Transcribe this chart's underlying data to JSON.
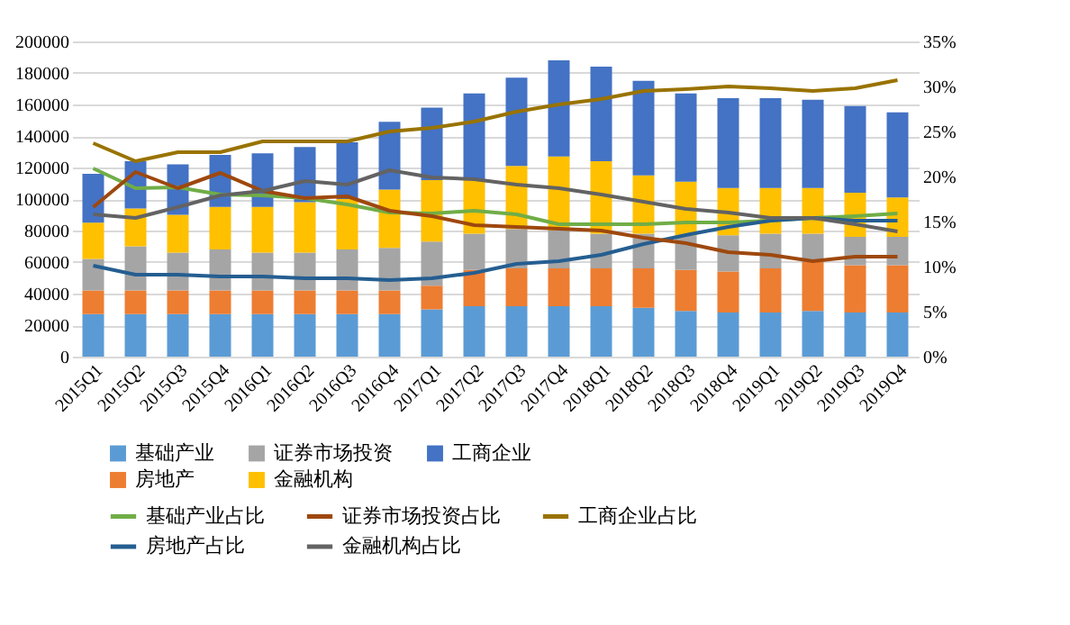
{
  "chart_data": {
    "type": "bar",
    "stacked": true,
    "legend": "bottom",
    "grid": "y",
    "categories": [
      "2015Q1",
      "2015Q2",
      "2015Q3",
      "2015Q4",
      "2016Q1",
      "2016Q2",
      "2016Q3",
      "2016Q4",
      "2017Q1",
      "2017Q2",
      "2017Q3",
      "2017Q4",
      "2018Q1",
      "2018Q2",
      "2018Q3",
      "2018Q4",
      "2019Q1",
      "2019Q2",
      "2019Q3",
      "2019Q4"
    ],
    "ylim": [
      0,
      200000
    ],
    "yticks": [
      0,
      20000,
      40000,
      60000,
      80000,
      100000,
      120000,
      140000,
      160000,
      180000,
      200000
    ],
    "y2lim": [
      0,
      35
    ],
    "y2ticks": [
      {
        "value": 0,
        "label": "0%"
      },
      {
        "value": 5,
        "label": "5%"
      },
      {
        "value": 10,
        "label": "10%"
      },
      {
        "value": 15,
        "label": "15%"
      },
      {
        "value": 20,
        "label": "20%"
      },
      {
        "value": 25,
        "label": "25%"
      },
      {
        "value": 30,
        "label": "30%"
      },
      {
        "value": 35,
        "label": "35%"
      }
    ],
    "series": [
      {
        "name": "基础产业",
        "color": "#5b9bd5",
        "values": [
          27000,
          27000,
          27000,
          27000,
          27000,
          27000,
          27000,
          27000,
          30000,
          32000,
          32000,
          32000,
          32000,
          31000,
          29000,
          28000,
          28000,
          29000,
          28000,
          28000
        ]
      },
      {
        "name": "房地产",
        "color": "#ed7d31",
        "values": [
          15000,
          15000,
          15000,
          15000,
          15000,
          15000,
          15000,
          15000,
          15000,
          23000,
          24000,
          24000,
          24000,
          25000,
          26000,
          26000,
          28000,
          31000,
          30000,
          30000
        ]
      },
      {
        "name": "证券市场投资",
        "color": "#a5a5a5",
        "values": [
          20000,
          28000,
          24000,
          26000,
          24000,
          24000,
          26000,
          27000,
          28000,
          23000,
          25000,
          24000,
          22000,
          22000,
          22000,
          23000,
          22000,
          18000,
          18000,
          18000
        ]
      },
      {
        "name": "金融机构",
        "color": "#ffc000",
        "values": [
          23000,
          24000,
          24000,
          27000,
          29000,
          32000,
          32000,
          37000,
          39000,
          34000,
          40000,
          47000,
          46000,
          37000,
          34000,
          30000,
          29000,
          29000,
          28000,
          25000
        ]
      },
      {
        "name": "工商企业",
        "color": "#4472c4",
        "values": [
          31000,
          30000,
          32000,
          33000,
          34000,
          35000,
          36000,
          43000,
          46000,
          55000,
          56000,
          61000,
          60000,
          60000,
          56000,
          57000,
          57000,
          56000,
          55000,
          54000
        ]
      },
      {
        "name": "基础产业占比",
        "type": "line",
        "axis": "y2",
        "color": "#70ad47",
        "values": [
          20.9,
          18.7,
          18.8,
          18.0,
          17.9,
          17.6,
          16.9,
          16.0,
          15.9,
          16.2,
          15.8,
          14.7,
          14.7,
          14.7,
          14.9,
          14.9,
          15.1,
          15.4,
          15.6,
          15.9
        ]
      },
      {
        "name": "房地产占比",
        "type": "line",
        "axis": "y2",
        "color": "#255e91",
        "values": [
          10.1,
          9.1,
          9.1,
          8.9,
          8.9,
          8.7,
          8.7,
          8.5,
          8.7,
          9.3,
          10.3,
          10.6,
          11.3,
          12.5,
          13.5,
          14.4,
          15.1,
          15.4,
          15.1,
          15.1
        ]
      },
      {
        "name": "证券市场投资占比",
        "type": "line",
        "axis": "y2",
        "color": "#9e480e",
        "values": [
          16.6,
          20.5,
          18.7,
          20.4,
          18.4,
          17.6,
          17.8,
          16.2,
          15.6,
          14.6,
          14.4,
          14.2,
          14.0,
          13.2,
          12.6,
          11.6,
          11.3,
          10.6,
          11.1,
          11.1
        ]
      },
      {
        "name": "金融机构占比",
        "type": "line",
        "axis": "y2",
        "color": "#636363",
        "values": [
          15.8,
          15.4,
          16.6,
          17.9,
          18.4,
          19.5,
          19.1,
          20.7,
          19.9,
          19.7,
          19.1,
          18.7,
          18.0,
          17.2,
          16.4,
          16.0,
          15.4,
          15.4,
          14.7,
          13.9
        ]
      },
      {
        "name": "工商企业占比",
        "type": "line",
        "axis": "y2",
        "color": "#997300",
        "values": [
          23.7,
          21.7,
          22.7,
          22.7,
          23.9,
          23.9,
          23.9,
          25.0,
          25.4,
          26.1,
          27.2,
          28.0,
          28.6,
          29.5,
          29.7,
          30.0,
          29.8,
          29.5,
          29.8,
          30.7
        ]
      }
    ]
  }
}
